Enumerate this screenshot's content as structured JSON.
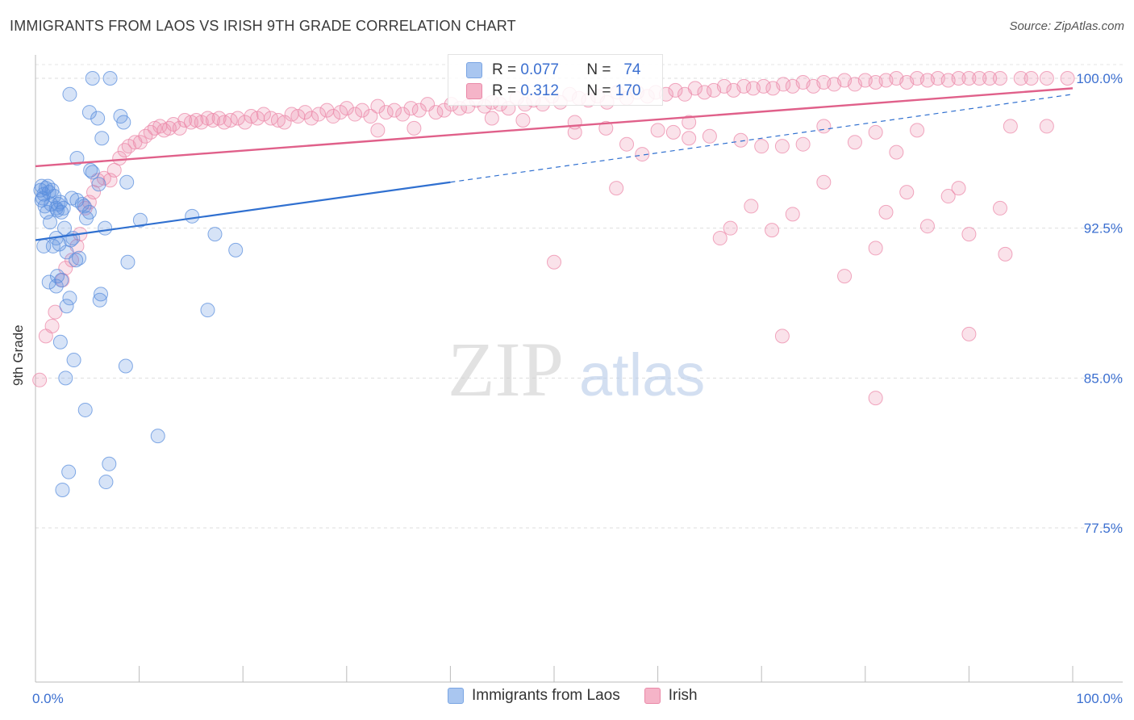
{
  "title": "IMMIGRANTS FROM LAOS VS IRISH 9TH GRADE CORRELATION CHART",
  "source": "Source: ZipAtlas.com",
  "watermark": {
    "zip": "ZIP",
    "atlas": "atlas"
  },
  "legend_box": {
    "rows": [
      {
        "r_label": "R =",
        "r_value": "0.077",
        "n_label": "N =",
        "n_value": "74"
      },
      {
        "r_label": "R =",
        "r_value": "0.312",
        "n_label": "N =",
        "n_value": "170"
      }
    ]
  },
  "bottom_legend": [
    "Immigrants from Laos",
    "Irish"
  ],
  "colors": {
    "blue": "#5b8fde",
    "pink": "#ec8aaa",
    "blue_line": "#3070d0",
    "pink_line": "#e0608a",
    "tick_text": "#3b6fd0"
  },
  "chart_data": {
    "type": "scatter",
    "title": "IMMIGRANTS FROM LAOS VS IRISH 9TH GRADE CORRELATION CHART",
    "xlabel": "",
    "ylabel": "9th Grade",
    "xlim": [
      0,
      100
    ],
    "ylim": [
      71.0,
      101.5
    ],
    "x_tick_labels": [
      "0.0%",
      "100.0%"
    ],
    "y_ticks": [
      77.5,
      85.0,
      92.5,
      100.0
    ],
    "y_tick_labels": [
      "77.5%",
      "85.0%",
      "92.5%",
      "100.0%"
    ],
    "grid": true,
    "series": [
      {
        "name": "Immigrants from Laos",
        "color": "#5b8fde",
        "r": 0.077,
        "n": 74,
        "trend": {
          "x0": 0,
          "y0": 91.9,
          "x1": 40,
          "y1": 94.8,
          "dashed_to_x": 100,
          "dashed_to_y": 99.2
        },
        "points": [
          [
            0.5,
            94.4
          ],
          [
            0.6,
            94.6
          ],
          [
            0.7,
            94.0
          ],
          [
            0.8,
            94.2
          ],
          [
            0.9,
            93.6
          ],
          [
            1.0,
            94.5
          ],
          [
            1.1,
            93.3
          ],
          [
            1.2,
            94.6
          ],
          [
            0.6,
            93.9
          ],
          [
            1.3,
            94.3
          ],
          [
            1.5,
            93.7
          ],
          [
            1.6,
            94.4
          ],
          [
            1.8,
            94.1
          ],
          [
            2.0,
            93.5
          ],
          [
            2.1,
            93.4
          ],
          [
            2.2,
            93.7
          ],
          [
            2.4,
            93.8
          ],
          [
            2.5,
            93.3
          ],
          [
            2.7,
            93.5
          ],
          [
            0.8,
            91.6
          ],
          [
            1.4,
            92.8
          ],
          [
            1.7,
            91.6
          ],
          [
            2.0,
            92.0
          ],
          [
            2.3,
            91.7
          ],
          [
            2.8,
            92.5
          ],
          [
            3.4,
            91.9
          ],
          [
            3.0,
            91.3
          ],
          [
            3.6,
            92.0
          ],
          [
            3.9,
            90.9
          ],
          [
            4.2,
            91.0
          ],
          [
            4.5,
            93.7
          ],
          [
            4.7,
            93.6
          ],
          [
            4.9,
            93.0
          ],
          [
            5.2,
            93.3
          ],
          [
            6.7,
            92.5
          ],
          [
            4.0,
            93.9
          ],
          [
            3.5,
            94.0
          ],
          [
            1.3,
            89.8
          ],
          [
            2.1,
            90.1
          ],
          [
            2.5,
            89.9
          ],
          [
            2.0,
            89.6
          ],
          [
            3.0,
            88.6
          ],
          [
            3.3,
            89.0
          ],
          [
            6.2,
            88.9
          ],
          [
            6.3,
            89.2
          ],
          [
            8.9,
            90.8
          ],
          [
            2.4,
            86.8
          ],
          [
            3.7,
            85.9
          ],
          [
            2.9,
            85.0
          ],
          [
            8.7,
            85.6
          ],
          [
            4.8,
            83.4
          ],
          [
            11.8,
            82.1
          ],
          [
            3.2,
            80.3
          ],
          [
            2.6,
            79.4
          ],
          [
            7.1,
            80.7
          ],
          [
            6.8,
            79.8
          ],
          [
            5.3,
            95.4
          ],
          [
            4.0,
            96.0
          ],
          [
            8.8,
            94.8
          ],
          [
            6.1,
            94.7
          ],
          [
            3.3,
            99.2
          ],
          [
            5.2,
            98.3
          ],
          [
            6.0,
            98.0
          ],
          [
            8.2,
            98.1
          ],
          [
            8.5,
            97.8
          ],
          [
            6.4,
            97.0
          ],
          [
            5.5,
            95.3
          ],
          [
            10.1,
            92.9
          ],
          [
            15.1,
            93.1
          ],
          [
            17.3,
            92.2
          ],
          [
            19.3,
            91.4
          ],
          [
            16.6,
            88.4
          ],
          [
            7.2,
            100.0
          ],
          [
            5.5,
            100.0
          ]
        ]
      },
      {
        "name": "Irish",
        "color": "#ec8aaa",
        "r": 0.312,
        "n": 170,
        "trend": {
          "x0": 0,
          "y0": 95.6,
          "x1": 100,
          "y1": 99.5
        },
        "points": [
          [
            0.4,
            84.9
          ],
          [
            1.0,
            87.1
          ],
          [
            1.6,
            87.6
          ],
          [
            1.9,
            88.3
          ],
          [
            2.6,
            89.9
          ],
          [
            2.9,
            90.5
          ],
          [
            3.5,
            90.9
          ],
          [
            4.0,
            91.6
          ],
          [
            4.3,
            92.2
          ],
          [
            4.8,
            93.5
          ],
          [
            5.2,
            93.8
          ],
          [
            5.6,
            94.3
          ],
          [
            6.0,
            94.9
          ],
          [
            6.6,
            95.0
          ],
          [
            7.2,
            94.9
          ],
          [
            7.6,
            95.4
          ],
          [
            8.1,
            96.0
          ],
          [
            8.6,
            96.4
          ],
          [
            9.0,
            96.6
          ],
          [
            9.6,
            96.8
          ],
          [
            10.1,
            96.8
          ],
          [
            10.6,
            97.1
          ],
          [
            11.1,
            97.3
          ],
          [
            11.5,
            97.5
          ],
          [
            12.0,
            97.6
          ],
          [
            12.4,
            97.4
          ],
          [
            12.9,
            97.5
          ],
          [
            13.3,
            97.7
          ],
          [
            13.9,
            97.5
          ],
          [
            14.4,
            97.9
          ],
          [
            15.0,
            97.8
          ],
          [
            15.5,
            97.9
          ],
          [
            16.0,
            97.8
          ],
          [
            16.6,
            98.0
          ],
          [
            17.1,
            97.9
          ],
          [
            17.7,
            98.0
          ],
          [
            18.2,
            97.8
          ],
          [
            18.8,
            97.9
          ],
          [
            19.5,
            98.0
          ],
          [
            20.2,
            97.8
          ],
          [
            20.8,
            98.1
          ],
          [
            21.4,
            98.0
          ],
          [
            22.0,
            98.2
          ],
          [
            22.7,
            98.0
          ],
          [
            23.4,
            97.9
          ],
          [
            24.0,
            97.8
          ],
          [
            24.7,
            98.2
          ],
          [
            25.3,
            98.1
          ],
          [
            26.0,
            98.3
          ],
          [
            26.6,
            98.0
          ],
          [
            27.3,
            98.2
          ],
          [
            28.1,
            98.4
          ],
          [
            28.7,
            98.1
          ],
          [
            29.4,
            98.3
          ],
          [
            30.0,
            98.5
          ],
          [
            30.8,
            98.2
          ],
          [
            31.5,
            98.4
          ],
          [
            32.3,
            98.1
          ],
          [
            33.0,
            98.6
          ],
          [
            33.8,
            98.3
          ],
          [
            34.6,
            98.4
          ],
          [
            35.4,
            98.2
          ],
          [
            36.2,
            98.5
          ],
          [
            37.0,
            98.4
          ],
          [
            37.8,
            98.7
          ],
          [
            38.6,
            98.3
          ],
          [
            39.4,
            98.4
          ],
          [
            40.1,
            98.7
          ],
          [
            40.9,
            98.5
          ],
          [
            41.7,
            98.6
          ],
          [
            42.5,
            98.9
          ],
          [
            43.3,
            98.6
          ],
          [
            44.0,
            98.8
          ],
          [
            44.8,
            98.7
          ],
          [
            45.6,
            98.5
          ],
          [
            46.4,
            99.0
          ],
          [
            47.2,
            98.7
          ],
          [
            48.0,
            98.9
          ],
          [
            48.9,
            98.7
          ],
          [
            49.8,
            99.1
          ],
          [
            50.6,
            98.8
          ],
          [
            51.5,
            99.2
          ],
          [
            52.4,
            99.0
          ],
          [
            53.3,
            98.9
          ],
          [
            54.2,
            99.1
          ],
          [
            55.1,
            98.8
          ],
          [
            56.1,
            99.3
          ],
          [
            57.0,
            99.0
          ],
          [
            58.0,
            99.3
          ],
          [
            59.0,
            99.1
          ],
          [
            59.8,
            99.3
          ],
          [
            60.8,
            99.2
          ],
          [
            61.7,
            99.4
          ],
          [
            62.6,
            99.2
          ],
          [
            63.6,
            99.5
          ],
          [
            64.5,
            99.3
          ],
          [
            65.4,
            99.4
          ],
          [
            66.4,
            99.6
          ],
          [
            67.3,
            99.4
          ],
          [
            68.3,
            99.6
          ],
          [
            69.2,
            99.5
          ],
          [
            70.2,
            99.6
          ],
          [
            71.1,
            99.5
          ],
          [
            72.1,
            99.7
          ],
          [
            73.0,
            99.6
          ],
          [
            74.0,
            99.8
          ],
          [
            75.0,
            99.6
          ],
          [
            76.0,
            99.8
          ],
          [
            77.0,
            99.7
          ],
          [
            78.0,
            99.9
          ],
          [
            79.0,
            99.7
          ],
          [
            80.0,
            99.9
          ],
          [
            81.0,
            99.8
          ],
          [
            82.0,
            99.9
          ],
          [
            83.0,
            100.0
          ],
          [
            84.0,
            99.8
          ],
          [
            85.0,
            100.0
          ],
          [
            86.0,
            99.9
          ],
          [
            87.0,
            100.0
          ],
          [
            88.0,
            99.9
          ],
          [
            89.0,
            100.0
          ],
          [
            90.0,
            100.0
          ],
          [
            91.0,
            100.0
          ],
          [
            92.0,
            100.0
          ],
          [
            93.0,
            100.0
          ],
          [
            95.0,
            100.0
          ],
          [
            96.0,
            100.0
          ],
          [
            97.5,
            100.0
          ],
          [
            99.5,
            100.0
          ],
          [
            33.0,
            97.4
          ],
          [
            36.5,
            97.5
          ],
          [
            44.0,
            98.0
          ],
          [
            47.0,
            97.9
          ],
          [
            52.0,
            97.8
          ],
          [
            55.0,
            97.5
          ],
          [
            57.0,
            96.7
          ],
          [
            58.5,
            96.2
          ],
          [
            61.5,
            97.3
          ],
          [
            63.0,
            97.8
          ],
          [
            65.0,
            97.1
          ],
          [
            68.0,
            96.9
          ],
          [
            70.0,
            96.6
          ],
          [
            72.0,
            96.6
          ],
          [
            74.0,
            96.7
          ],
          [
            76.0,
            97.6
          ],
          [
            79.0,
            96.8
          ],
          [
            81.0,
            97.3
          ],
          [
            83.0,
            96.3
          ],
          [
            85.0,
            97.4
          ],
          [
            94.0,
            97.6
          ],
          [
            97.5,
            97.6
          ],
          [
            52.0,
            97.3
          ],
          [
            60.0,
            97.4
          ],
          [
            63.0,
            97.0
          ],
          [
            56.0,
            94.5
          ],
          [
            69.0,
            93.6
          ],
          [
            76.0,
            94.8
          ],
          [
            84.0,
            94.3
          ],
          [
            88.0,
            94.1
          ],
          [
            89.0,
            94.5
          ],
          [
            93.0,
            93.5
          ],
          [
            73.0,
            93.2
          ],
          [
            67.0,
            92.5
          ],
          [
            82.0,
            93.3
          ],
          [
            86.0,
            92.6
          ],
          [
            90.0,
            92.2
          ],
          [
            81.0,
            91.5
          ],
          [
            93.5,
            91.2
          ],
          [
            50.0,
            90.8
          ],
          [
            71.0,
            92.4
          ],
          [
            66.0,
            92.0
          ],
          [
            78.0,
            90.1
          ],
          [
            72.0,
            87.1
          ],
          [
            90.0,
            87.2
          ],
          [
            81.0,
            84.0
          ]
        ]
      }
    ]
  }
}
